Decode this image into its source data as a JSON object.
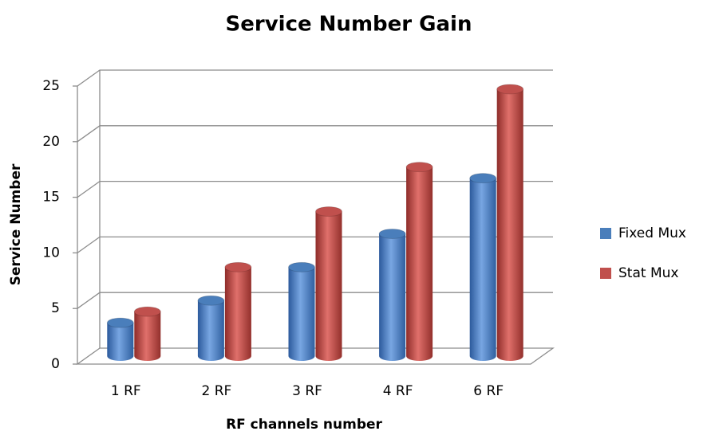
{
  "chart_data": {
    "type": "bar",
    "title": "Service Number Gain",
    "x_label": "RF channels number",
    "y_label": "Service Number",
    "categories": [
      "1 RF",
      "2 RF",
      "3 RF",
      "4 RF",
      "6 RF"
    ],
    "series": [
      {
        "name": "Fixed Mux",
        "color": "#4a7ebb",
        "values": [
          3,
          5,
          8,
          11,
          16
        ]
      },
      {
        "name": "Stat Mux",
        "color": "#c0504d",
        "values": [
          4,
          8,
          13,
          17,
          24
        ]
      }
    ],
    "ylim": [
      0,
      25
    ],
    "yticks": [
      0,
      5,
      10,
      15,
      20,
      25
    ],
    "grid": true,
    "legend": "right"
  }
}
